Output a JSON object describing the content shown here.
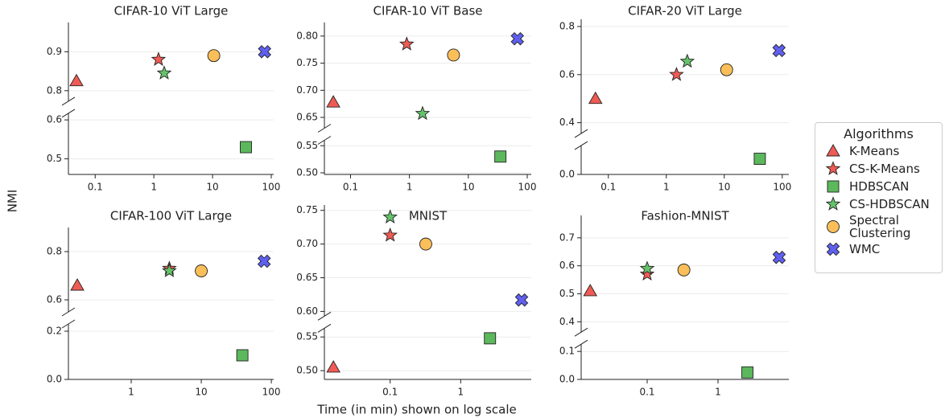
{
  "figure": {
    "ylabel": "NMI",
    "xlabel": "Time (in min) shown on log scale"
  },
  "legend": {
    "title": "Algorithms",
    "position": "right"
  },
  "chart_data": [
    {
      "type": "scatter",
      "title": "CIFAR-10 ViT Large",
      "xscale": "log",
      "xlim": [
        0.035,
        110
      ],
      "xticks": [
        0.1,
        1,
        10,
        100
      ],
      "grid": true,
      "y_segments": [
        {
          "ylim": [
            0.46,
            0.617
          ],
          "yticks": [
            0.5,
            0.6
          ]
        },
        {
          "ylim": [
            0.773,
            0.975
          ],
          "yticks": [
            0.8,
            0.9
          ]
        }
      ],
      "series": [
        {
          "name": "K-Means",
          "color": "#ef5b54",
          "marker": "triangle",
          "x": [
            0.048
          ],
          "values": [
            0.825
          ]
        },
        {
          "name": "CS-K-Means",
          "color": "#ef5b54",
          "marker": "star",
          "x": [
            1.2
          ],
          "values": [
            0.88
          ]
        },
        {
          "name": "HDBSCAN",
          "color": "#5cb85c",
          "marker": "square",
          "x": [
            37
          ],
          "values": [
            0.53
          ]
        },
        {
          "name": "CS-HDBSCAN",
          "color": "#66c26a",
          "marker": "star",
          "x": [
            1.5
          ],
          "values": [
            0.845
          ]
        },
        {
          "name": "Spectral Clustering",
          "color": "#fbbf5a",
          "marker": "circle",
          "x": [
            10.5
          ],
          "values": [
            0.89
          ]
        },
        {
          "name": "WMC",
          "color": "#5f5ff0",
          "marker": "x",
          "x": [
            77
          ],
          "values": [
            0.9
          ]
        }
      ]
    },
    {
      "type": "scatter",
      "title": "CIFAR-10 ViT Base",
      "xscale": "log",
      "xlim": [
        0.036,
        117
      ],
      "xticks": [
        0.1,
        1,
        10,
        100
      ],
      "grid": true,
      "y_segments": [
        {
          "ylim": [
            0.497,
            0.56
          ],
          "yticks": [
            {
              "value": 0.5,
              "label": "0.50"
            },
            0.55
          ]
        },
        {
          "ylim": [
            0.63,
            0.825
          ],
          "yticks": [
            0.65,
            {
              "value": 0.7,
              "label": "0.70"
            },
            0.75,
            {
              "value": 0.8,
              "label": "0.80"
            }
          ]
        }
      ],
      "series": [
        {
          "name": "K-Means",
          "color": "#ef5b54",
          "marker": "triangle",
          "x": [
            0.051
          ],
          "values": [
            0.678
          ]
        },
        {
          "name": "CS-K-Means",
          "color": "#ef5b54",
          "marker": "star",
          "x": [
            0.9
          ],
          "values": [
            0.785
          ]
        },
        {
          "name": "HDBSCAN",
          "color": "#5cb85c",
          "marker": "square",
          "x": [
            35
          ],
          "values": [
            0.53
          ]
        },
        {
          "name": "CS-HDBSCAN",
          "color": "#66c26a",
          "marker": "star",
          "x": [
            1.67
          ],
          "values": [
            0.657
          ]
        },
        {
          "name": "Spectral Clustering",
          "color": "#fbbf5a",
          "marker": "circle",
          "x": [
            5.6
          ],
          "values": [
            0.765
          ]
        },
        {
          "name": "WMC",
          "color": "#5f5ff0",
          "marker": "x",
          "x": [
            68
          ],
          "values": [
            0.795
          ]
        }
      ]
    },
    {
      "type": "scatter",
      "title": "CIFAR-20 ViT Large",
      "xscale": "log",
      "xlim": [
        0.034,
        130
      ],
      "xticks": [
        0.1,
        1,
        10,
        100
      ],
      "grid": true,
      "y_segments": [
        {
          "ylim": [
            0,
            0.12
          ],
          "yticks": [
            {
              "value": 0,
              "label": "0.0"
            }
          ]
        },
        {
          "ylim": [
            0.355,
            0.83
          ],
          "yticks": [
            0.4,
            0.6,
            0.8
          ]
        }
      ],
      "series": [
        {
          "name": "K-Means",
          "color": "#ef5b54",
          "marker": "triangle",
          "x": [
            0.06
          ],
          "values": [
            0.5
          ]
        },
        {
          "name": "CS-K-Means",
          "color": "#ef5b54",
          "marker": "star",
          "x": [
            1.5
          ],
          "values": [
            0.6
          ]
        },
        {
          "name": "HDBSCAN",
          "color": "#5cb85c",
          "marker": "square",
          "x": [
            41
          ],
          "values": [
            0.065
          ]
        },
        {
          "name": "CS-HDBSCAN",
          "color": "#66c26a",
          "marker": "star",
          "x": [
            2.3
          ],
          "values": [
            0.655
          ]
        },
        {
          "name": "Spectral Clustering",
          "color": "#fbbf5a",
          "marker": "circle",
          "x": [
            11
          ],
          "values": [
            0.62
          ]
        },
        {
          "name": "WMC",
          "color": "#5f5ff0",
          "marker": "x",
          "x": [
            88
          ],
          "values": [
            0.7
          ]
        }
      ]
    },
    {
      "type": "scatter",
      "title": "CIFAR-100 ViT Large",
      "xscale": "log",
      "xlim": [
        0.127,
        108
      ],
      "xticks": [
        1,
        10,
        100
      ],
      "grid": true,
      "y_segments": [
        {
          "ylim": [
            0,
            0.23
          ],
          "yticks": [
            {
              "value": 0,
              "label": "0.0"
            },
            0.2
          ]
        },
        {
          "ylim": [
            0.55,
            0.9
          ],
          "yticks": [
            0.6,
            0.8
          ]
        }
      ],
      "series": [
        {
          "name": "K-Means",
          "color": "#ef5b54",
          "marker": "triangle",
          "x": [
            0.17
          ],
          "values": [
            0.66
          ]
        },
        {
          "name": "CS-K-Means",
          "color": "#ef5b54",
          "marker": "star",
          "x": [
            3.5
          ],
          "values": [
            0.73
          ]
        },
        {
          "name": "HDBSCAN",
          "color": "#5cb85c",
          "marker": "square",
          "x": [
            38.6
          ],
          "values": [
            0.1
          ]
        },
        {
          "name": "CS-HDBSCAN",
          "color": "#66c26a",
          "marker": "star",
          "x": [
            3.5
          ],
          "values": [
            0.72
          ]
        },
        {
          "name": "Spectral Clustering",
          "color": "#fbbf5a",
          "marker": "circle",
          "x": [
            10
          ],
          "values": [
            0.72
          ]
        },
        {
          "name": "WMC",
          "color": "#5f5ff0",
          "marker": "x",
          "x": [
            79
          ],
          "values": [
            0.76
          ]
        }
      ]
    },
    {
      "type": "scatter",
      "title": "MNIST",
      "xscale": "log",
      "xlim": [
        0.0117,
        10
      ],
      "xticks": [
        0.1,
        1
      ],
      "grid": true,
      "y_segments": [
        {
          "ylim": [
            0.487,
            0.563
          ],
          "yticks": [
            {
              "value": 0.5,
              "label": "0.50"
            },
            0.55
          ]
        },
        {
          "ylim": [
            0.593,
            0.758
          ],
          "yticks": [
            {
              "value": 0.6,
              "label": "0.60"
            },
            0.65,
            {
              "value": 0.7,
              "label": "0.70"
            },
            0.75
          ]
        }
      ],
      "series": [
        {
          "name": "K-Means",
          "color": "#ef5b54",
          "marker": "triangle",
          "x": [
            0.0157
          ],
          "values": [
            0.505
          ]
        },
        {
          "name": "CS-K-Means",
          "color": "#ef5b54",
          "marker": "star",
          "x": [
            0.1
          ],
          "values": [
            0.713
          ]
        },
        {
          "name": "HDBSCAN",
          "color": "#5cb85c",
          "marker": "square",
          "x": [
            2.6
          ],
          "values": [
            0.548
          ]
        },
        {
          "name": "CS-HDBSCAN",
          "color": "#66c26a",
          "marker": "star",
          "x": [
            0.1
          ],
          "values": [
            0.74
          ]
        },
        {
          "name": "Spectral Clustering",
          "color": "#fbbf5a",
          "marker": "circle",
          "x": [
            0.32
          ],
          "values": [
            0.7
          ]
        },
        {
          "name": "WMC",
          "color": "#5f5ff0",
          "marker": "x",
          "x": [
            7.3
          ],
          "values": [
            0.617
          ]
        }
      ]
    },
    {
      "type": "scatter",
      "title": "Fashion-MNIST",
      "xscale": "log",
      "xlim": [
        0.0117,
        10
      ],
      "xticks": [
        0.1,
        1
      ],
      "grid": true,
      "y_segments": [
        {
          "ylim": [
            0,
            0.126
          ],
          "yticks": [
            {
              "value": 0,
              "label": "0.0"
            },
            0.1
          ]
        },
        {
          "ylim": [
            0.363,
            0.78
          ],
          "yticks": [
            0.4,
            0.5,
            0.6,
            0.7
          ]
        }
      ],
      "series": [
        {
          "name": "K-Means",
          "color": "#ef5b54",
          "marker": "triangle",
          "x": [
            0.0157
          ],
          "values": [
            0.51
          ]
        },
        {
          "name": "CS-K-Means",
          "color": "#ef5b54",
          "marker": "star",
          "x": [
            0.1
          ],
          "values": [
            0.57
          ]
        },
        {
          "name": "HDBSCAN",
          "color": "#5cb85c",
          "marker": "square",
          "x": [
            2.6
          ],
          "values": [
            0.025
          ]
        },
        {
          "name": "CS-HDBSCAN",
          "color": "#66c26a",
          "marker": "star",
          "x": [
            0.1
          ],
          "values": [
            0.59
          ]
        },
        {
          "name": "Spectral Clustering",
          "color": "#fbbf5a",
          "marker": "circle",
          "x": [
            0.33
          ],
          "values": [
            0.585
          ]
        },
        {
          "name": "WMC",
          "color": "#5f5ff0",
          "marker": "x",
          "x": [
            7.3
          ],
          "values": [
            0.63
          ]
        }
      ]
    }
  ]
}
